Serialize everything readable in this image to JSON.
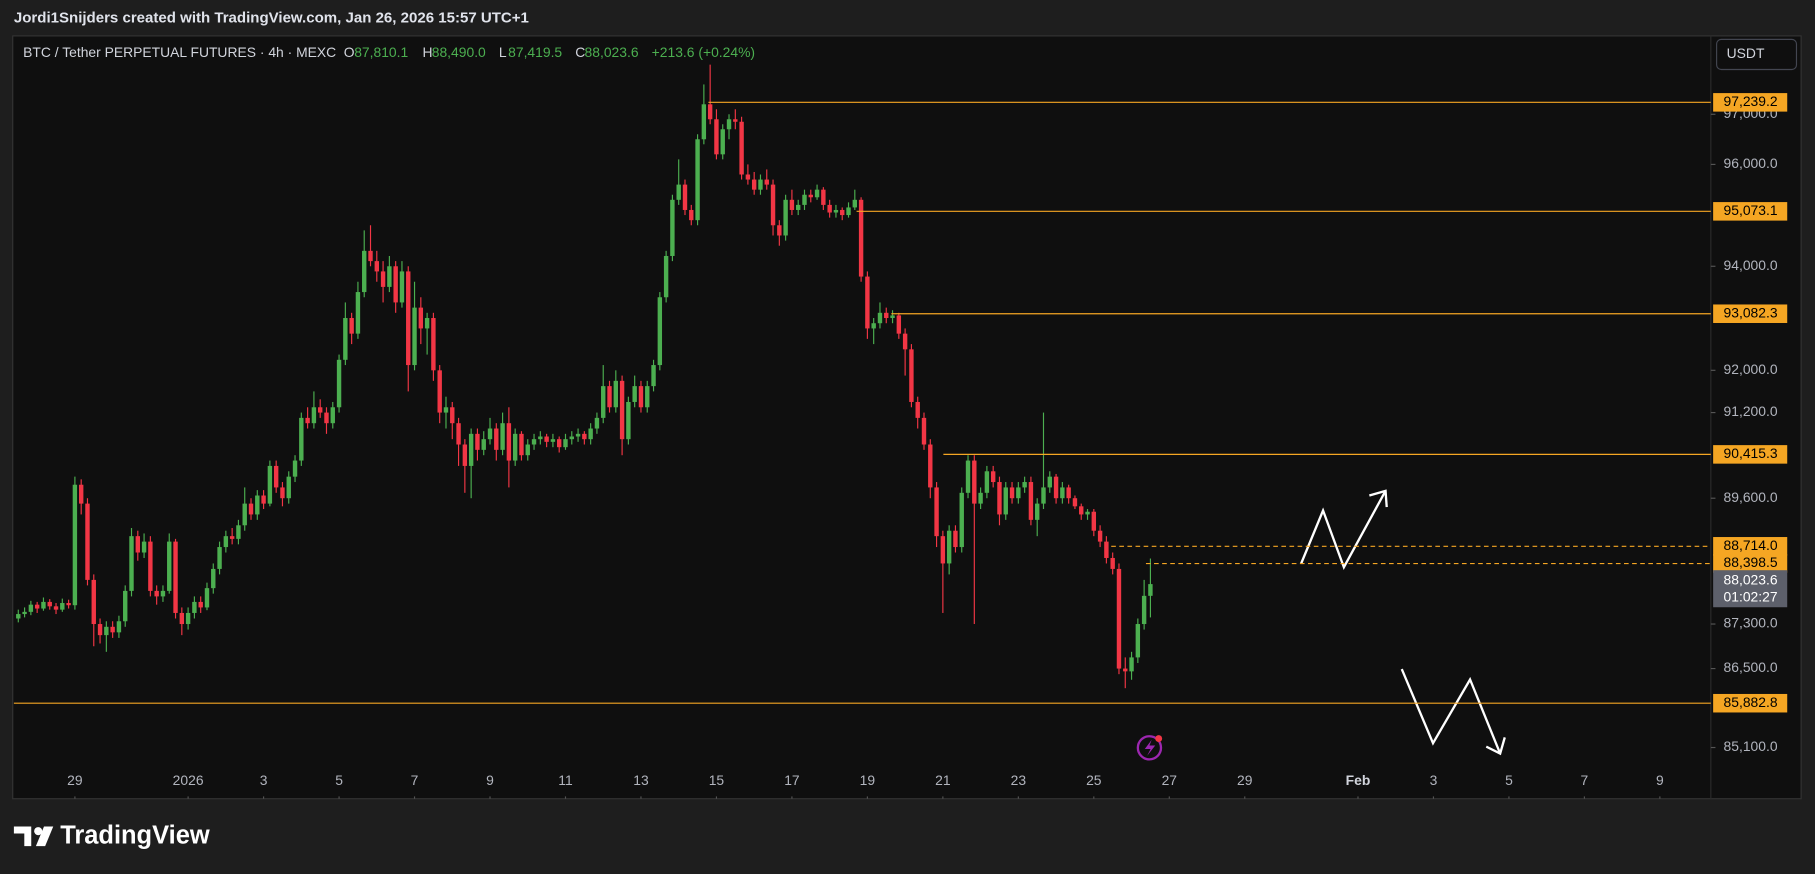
{
  "header": {
    "credit": "Jordi1Snijders created with TradingView.com, Jan 26, 2026 15:57 UTC+1"
  },
  "legend": {
    "symbol": "BTC / Tether PERPETUAL FUTURES · 4h · MEXC",
    "o_label": "O",
    "open": "87,810.1",
    "h_label": "H",
    "high": "88,490.0",
    "l_label": "L",
    "low": "87,419.5",
    "c_label": "C",
    "close": "88,023.6",
    "change": "+213.6 (+0.24%)"
  },
  "currency_button": "USDT",
  "logo": "TradingView",
  "chart_data": {
    "type": "candlestick",
    "log_scale": true,
    "grid": false,
    "up_color": "#4caf50",
    "down_color": "#f23645",
    "level_color": "#f5a623",
    "ylim": [
      84770,
      98560
    ],
    "yticks": [
      {
        "value": 97000,
        "label": "97,000.0"
      },
      {
        "value": 96000,
        "label": "96,000.0"
      },
      {
        "value": 94000,
        "label": "94,000.0"
      },
      {
        "value": 92000,
        "label": "92,000.0"
      },
      {
        "value": 91200,
        "label": "91,200.0"
      },
      {
        "value": 89600,
        "label": "89,600.0"
      },
      {
        "value": 87300,
        "label": "87,300.0"
      },
      {
        "value": 86500,
        "label": "86,500.0"
      },
      {
        "value": 85100,
        "label": "85,100.0"
      }
    ],
    "xlim": [
      -0.7,
      269.1
    ],
    "xticks": [
      {
        "value": 9,
        "label": "29"
      },
      {
        "value": 27,
        "label": "2026"
      },
      {
        "value": 39,
        "label": "3"
      },
      {
        "value": 51,
        "label": "5"
      },
      {
        "value": 63,
        "label": "7"
      },
      {
        "value": 75,
        "label": "9"
      },
      {
        "value": 87,
        "label": "11"
      },
      {
        "value": 99,
        "label": "13"
      },
      {
        "value": 111,
        "label": "15"
      },
      {
        "value": 123,
        "label": "17"
      },
      {
        "value": 135,
        "label": "19"
      },
      {
        "value": 147,
        "label": "21"
      },
      {
        "value": 159,
        "label": "23"
      },
      {
        "value": 171,
        "label": "25"
      },
      {
        "value": 183,
        "label": "27"
      },
      {
        "value": 195,
        "label": "29"
      },
      {
        "value": 213,
        "label": "Feb"
      },
      {
        "value": 225,
        "label": "3"
      },
      {
        "value": 237,
        "label": "5"
      },
      {
        "value": 249,
        "label": "7"
      },
      {
        "value": 261,
        "label": "9"
      }
    ],
    "levels": [
      {
        "value": 97239.2,
        "label": "97,239.2",
        "style": "solid"
      },
      {
        "value": 95073.1,
        "label": "95,073.1",
        "style": "solid"
      },
      {
        "value": 93082.3,
        "label": "93,082.3",
        "style": "solid"
      },
      {
        "value": 90415.3,
        "label": "90,415.3",
        "style": "solid"
      },
      {
        "value": 88714.0,
        "label": "88,714.0",
        "style": "dashed"
      },
      {
        "value": 88398.5,
        "label": "88,398.5",
        "style": "dashed"
      },
      {
        "value": 85882.8,
        "label": "85,882.8",
        "style": "solid"
      }
    ],
    "last_price": {
      "value": 88023.6,
      "label": "88,023.6"
    },
    "countdown": "01:02:27",
    "candles": [
      [
        87400,
        87560,
        87330,
        87480
      ],
      [
        87480,
        87600,
        87420,
        87520
      ],
      [
        87520,
        87720,
        87460,
        87650
      ],
      [
        87650,
        87700,
        87500,
        87580
      ],
      [
        87580,
        87780,
        87540,
        87700
      ],
      [
        87700,
        87750,
        87560,
        87620
      ],
      [
        87620,
        87680,
        87480,
        87560
      ],
      [
        87560,
        87760,
        87520,
        87680
      ],
      [
        87680,
        87740,
        87580,
        87640
      ],
      [
        87640,
        90000,
        87560,
        89850
      ],
      [
        89850,
        89950,
        89300,
        89500
      ],
      [
        89500,
        89600,
        88000,
        88100
      ],
      [
        88100,
        88200,
        86900,
        87300
      ],
      [
        87300,
        87400,
        86950,
        87100
      ],
      [
        87100,
        87350,
        86800,
        87250
      ],
      [
        87250,
        87350,
        87050,
        87150
      ],
      [
        87150,
        87450,
        87050,
        87350
      ],
      [
        87350,
        88000,
        87250,
        87900
      ],
      [
        87900,
        89050,
        87800,
        88900
      ],
      [
        88900,
        89000,
        88450,
        88600
      ],
      [
        88600,
        88950,
        88500,
        88800
      ],
      [
        88800,
        88900,
        87800,
        87900
      ],
      [
        87900,
        88000,
        87650,
        87800
      ],
      [
        87800,
        88000,
        87700,
        87900
      ],
      [
        87900,
        88950,
        87850,
        88800
      ],
      [
        88800,
        88850,
        87400,
        87500
      ],
      [
        87500,
        87600,
        87100,
        87300
      ],
      [
        87300,
        87600,
        87200,
        87500
      ],
      [
        87500,
        87800,
        87400,
        87700
      ],
      [
        87700,
        87800,
        87500,
        87600
      ],
      [
        87600,
        88050,
        87550,
        87950
      ],
      [
        87950,
        88400,
        87850,
        88300
      ],
      [
        88300,
        88800,
        88200,
        88700
      ],
      [
        88700,
        89000,
        88600,
        88900
      ],
      [
        88900,
        89050,
        88750,
        88850
      ],
      [
        88850,
        89200,
        88750,
        89100
      ],
      [
        89100,
        89800,
        89000,
        89500
      ],
      [
        89500,
        89600,
        89200,
        89300
      ],
      [
        89300,
        89750,
        89200,
        89650
      ],
      [
        89650,
        89750,
        89400,
        89500
      ],
      [
        89500,
        90300,
        89450,
        90200
      ],
      [
        90200,
        90300,
        89700,
        89800
      ],
      [
        89800,
        89900,
        89450,
        89600
      ],
      [
        89600,
        90100,
        89500,
        90000
      ],
      [
        90000,
        90400,
        89900,
        90300
      ],
      [
        90300,
        91200,
        90200,
        91100
      ],
      [
        91100,
        91300,
        90900,
        91000
      ],
      [
        91000,
        91600,
        90900,
        91300
      ],
      [
        91300,
        91450,
        91100,
        91200
      ],
      [
        91200,
        91300,
        90800,
        91000
      ],
      [
        91000,
        91400,
        90900,
        91300
      ],
      [
        91300,
        92300,
        91200,
        92200
      ],
      [
        92200,
        93300,
        92100,
        93000
      ],
      [
        93000,
        93100,
        92500,
        92700
      ],
      [
        92700,
        93700,
        92600,
        93500
      ],
      [
        93500,
        94700,
        93400,
        94300
      ],
      [
        94300,
        94800,
        94000,
        94100
      ],
      [
        94100,
        94300,
        93700,
        93900
      ],
      [
        93900,
        94100,
        93300,
        93600
      ],
      [
        93600,
        94200,
        93500,
        94000
      ],
      [
        94000,
        94100,
        93100,
        93300
      ],
      [
        93300,
        94100,
        93200,
        93900
      ],
      [
        93900,
        94000,
        91600,
        92100
      ],
      [
        92100,
        93700,
        92000,
        93200
      ],
      [
        93200,
        93400,
        92500,
        92800
      ],
      [
        92800,
        93100,
        92300,
        93000
      ],
      [
        93000,
        93100,
        91800,
        92000
      ],
      [
        92000,
        92100,
        91000,
        91200
      ],
      [
        91200,
        91500,
        90900,
        91300
      ],
      [
        91300,
        91400,
        90700,
        91000
      ],
      [
        91000,
        91100,
        90200,
        90600
      ],
      [
        90600,
        90700,
        89700,
        90200
      ],
      [
        90200,
        90900,
        89600,
        90800
      ],
      [
        90800,
        90900,
        90300,
        90500
      ],
      [
        90500,
        90850,
        90400,
        90700
      ],
      [
        90700,
        91100,
        90600,
        90900
      ],
      [
        90900,
        91000,
        90300,
        90500
      ],
      [
        90500,
        91200,
        90400,
        91000
      ],
      [
        91000,
        91300,
        89800,
        90300
      ],
      [
        90300,
        90900,
        90200,
        90800
      ],
      [
        90800,
        90850,
        90300,
        90400
      ],
      [
        90400,
        90700,
        90300,
        90600
      ],
      [
        90600,
        90800,
        90500,
        90700
      ],
      [
        90700,
        90850,
        90600,
        90750
      ],
      [
        90750,
        90800,
        90550,
        90650
      ],
      [
        90650,
        90800,
        90550,
        90700
      ],
      [
        90700,
        90750,
        90450,
        90550
      ],
      [
        90550,
        90800,
        90500,
        90700
      ],
      [
        90700,
        90850,
        90600,
        90750
      ],
      [
        90750,
        90900,
        90650,
        90800
      ],
      [
        90800,
        90850,
        90600,
        90700
      ],
      [
        90700,
        91000,
        90600,
        90900
      ],
      [
        90900,
        91200,
        90800,
        91100
      ],
      [
        91100,
        92100,
        91000,
        91700
      ],
      [
        91700,
        91800,
        91200,
        91300
      ],
      [
        91300,
        92000,
        91200,
        91800
      ],
      [
        91800,
        91900,
        90400,
        90700
      ],
      [
        90700,
        91500,
        90600,
        91400
      ],
      [
        91400,
        91900,
        91300,
        91700
      ],
      [
        91700,
        91800,
        91200,
        91300
      ],
      [
        91300,
        91800,
        91200,
        91700
      ],
      [
        91700,
        92200,
        91600,
        92100
      ],
      [
        92100,
        93500,
        92000,
        93400
      ],
      [
        93400,
        94300,
        93300,
        94200
      ],
      [
        94200,
        95400,
        94100,
        95300
      ],
      [
        95300,
        96100,
        95200,
        95600
      ],
      [
        95600,
        95700,
        95000,
        95100
      ],
      [
        95100,
        95200,
        94800,
        94900
      ],
      [
        94900,
        96600,
        94800,
        96500
      ],
      [
        96500,
        97600,
        96400,
        97200
      ],
      [
        97200,
        98000,
        96800,
        96900
      ],
      [
        96900,
        97100,
        96100,
        96200
      ],
      [
        96200,
        96800,
        96100,
        96700
      ],
      [
        96700,
        97000,
        96500,
        96900
      ],
      [
        96900,
        97100,
        96700,
        96850
      ],
      [
        96850,
        96950,
        95700,
        95800
      ],
      [
        95800,
        96000,
        95600,
        95700
      ],
      [
        95700,
        95850,
        95400,
        95500
      ],
      [
        95500,
        95800,
        95400,
        95700
      ],
      [
        95700,
        95900,
        95500,
        95600
      ],
      [
        95600,
        95700,
        94600,
        94800
      ],
      [
        94800,
        94900,
        94400,
        94600
      ],
      [
        94600,
        95400,
        94500,
        95300
      ],
      [
        95300,
        95500,
        95000,
        95100
      ],
      [
        95100,
        95300,
        95000,
        95200
      ],
      [
        95200,
        95500,
        95100,
        95400
      ],
      [
        95400,
        95500,
        95250,
        95350
      ],
      [
        95350,
        95600,
        95300,
        95500
      ],
      [
        95500,
        95550,
        95100,
        95200
      ],
      [
        95200,
        95300,
        94950,
        95050
      ],
      [
        95050,
        95200,
        94950,
        95100
      ],
      [
        95100,
        95150,
        94900,
        95000
      ],
      [
        95000,
        95250,
        94950,
        95150
      ],
      [
        95150,
        95500,
        95100,
        95300
      ],
      [
        95300,
        95350,
        93700,
        93800
      ],
      [
        93800,
        93900,
        92600,
        92800
      ],
      [
        92800,
        93000,
        92500,
        92900
      ],
      [
        92900,
        93300,
        92800,
        93100
      ],
      [
        93100,
        93200,
        92900,
        93000
      ],
      [
        93000,
        93150,
        92900,
        93050
      ],
      [
        93050,
        93100,
        92600,
        92700
      ],
      [
        92700,
        92800,
        91900,
        92400
      ],
      [
        92400,
        92500,
        91300,
        91400
      ],
      [
        91400,
        91500,
        90900,
        91100
      ],
      [
        91100,
        91200,
        90500,
        90600
      ],
      [
        90600,
        90700,
        89600,
        89800
      ],
      [
        89800,
        89900,
        88700,
        88900
      ],
      [
        88900,
        89000,
        87500,
        88400
      ],
      [
        88400,
        89100,
        88200,
        89000
      ],
      [
        89000,
        89100,
        88600,
        88700
      ],
      [
        88700,
        89800,
        88600,
        89700
      ],
      [
        89700,
        90400,
        89600,
        90300
      ],
      [
        90300,
        90400,
        87300,
        89500
      ],
      [
        89500,
        89800,
        89400,
        89700
      ],
      [
        89700,
        90200,
        89600,
        90100
      ],
      [
        90100,
        90200,
        89800,
        89900
      ],
      [
        89900,
        90000,
        89100,
        89300
      ],
      [
        89300,
        89900,
        89200,
        89800
      ],
      [
        89800,
        89900,
        89500,
        89600
      ],
      [
        89600,
        89900,
        89500,
        89800
      ],
      [
        89800,
        90000,
        89700,
        89900
      ],
      [
        89900,
        90000,
        89100,
        89200
      ],
      [
        89200,
        89600,
        88900,
        89500
      ],
      [
        89500,
        91200,
        89400,
        89800
      ],
      [
        89800,
        90100,
        89700,
        90000
      ],
      [
        90000,
        90050,
        89500,
        89600
      ],
      [
        89600,
        89900,
        89500,
        89800
      ],
      [
        89800,
        89850,
        89500,
        89600
      ],
      [
        89600,
        89650,
        89400,
        89450
      ],
      [
        89450,
        89500,
        89200,
        89300
      ],
      [
        89300,
        89400,
        89200,
        89350
      ],
      [
        89350,
        89400,
        88900,
        89000
      ],
      [
        89000,
        89100,
        88700,
        88800
      ],
      [
        88800,
        88900,
        88400,
        88500
      ],
      [
        88500,
        88600,
        88200,
        88300
      ],
      [
        88300,
        88400,
        86400,
        86500
      ],
      [
        86500,
        86700,
        86150,
        86450
      ],
      [
        86450,
        86800,
        86300,
        86700
      ],
      [
        86700,
        87400,
        86600,
        87300
      ],
      [
        87300,
        88100,
        87200,
        87810.1
      ],
      [
        87810.1,
        88490.0,
        87419.5,
        88023.6
      ]
    ]
  }
}
